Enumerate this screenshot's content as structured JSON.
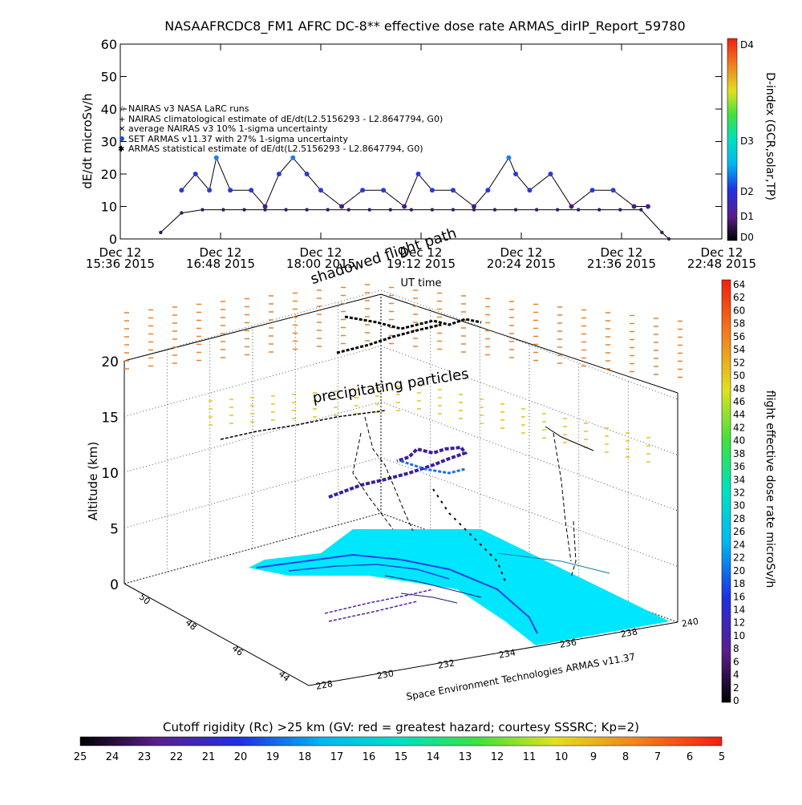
{
  "title": "NASAAFRCDC8_FM1 AFRC DC-8** effective dose rate ARMAS_dirIP_Report_59780",
  "chart_data": [
    {
      "type": "scatter",
      "title": "NASAAFRCDC8_FM1 AFRC DC-8** effective dose rate ARMAS_dirIP_Report_59780",
      "ylabel": "dE/dt microSv/h",
      "xlabel": "UT time",
      "ylim": [
        0,
        60
      ],
      "yticks": [
        "0",
        "10",
        "20",
        "30",
        "40",
        "50",
        "60"
      ],
      "xticks": [
        {
          "date": "Dec 12",
          "time": "15:36 2015"
        },
        {
          "date": "Dec 12",
          "time": "16:48 2015"
        },
        {
          "date": "Dec 12",
          "time": "18:00 2015"
        },
        {
          "date": "Dec 12",
          "time": "19:12 2015"
        },
        {
          "date": "Dec 12",
          "time": "20:24 2015"
        },
        {
          "date": "Dec 12",
          "time": "21:36 2015"
        },
        {
          "date": "Dec 12",
          "time": "22:48 2015"
        }
      ],
      "legend": [
        "NAIRAS v3 NASA LaRC runs",
        "NAIRAS climatological estimate of dE/dt(L2.5156293 - L2.8647794, G0)",
        "average NAIRAS v3 10% 1-sigma uncertainty",
        "SET ARMAS v11.37 with 27% 1-sigma uncertainty",
        "ARMAS statistical estimate of dE/dt(L2.5156293 - L2.8647794, G0)"
      ],
      "right_axis": {
        "label": "D-index (GCR,solar,TP)",
        "ticks": [
          "D4",
          "D3",
          "D2",
          "D1",
          "D0"
        ]
      },
      "series": [
        {
          "name": "NAIRAS climatological estimate of dE/dt(L2.5156293 - L2.8647794, G0)",
          "x": [
            "16:05",
            "16:20",
            "16:35",
            "16:50",
            "17:05",
            "17:20",
            "17:35",
            "17:50",
            "18:05",
            "18:20",
            "18:35",
            "18:50",
            "19:05",
            "19:20",
            "19:35",
            "19:50",
            "20:05",
            "20:20",
            "20:35",
            "20:50",
            "21:05",
            "21:20",
            "21:35",
            "21:50",
            "22:05",
            "22:10"
          ],
          "values": [
            2,
            8,
            9,
            9,
            9,
            9,
            9,
            9,
            9,
            9,
            9,
            9,
            9,
            9,
            9,
            9,
            9,
            9,
            9,
            9,
            9,
            9,
            9,
            9,
            2,
            0
          ]
        },
        {
          "name": "SET ARMAS v11.37 with 27% 1-sigma uncertainty",
          "x": [
            "16:20",
            "16:30",
            "16:40",
            "16:45",
            "16:55",
            "17:10",
            "17:20",
            "17:30",
            "17:40",
            "17:50",
            "18:00",
            "18:15",
            "18:30",
            "18:45",
            "19:00",
            "19:10",
            "19:20",
            "19:35",
            "19:50",
            "20:00",
            "20:15",
            "20:20",
            "20:30",
            "20:45",
            "21:00",
            "21:15",
            "21:30",
            "21:45",
            "21:55"
          ],
          "values": [
            15,
            20,
            15,
            25,
            15,
            15,
            10,
            20,
            25,
            20,
            15,
            10,
            15,
            15,
            10,
            20,
            15,
            15,
            10,
            15,
            25,
            20,
            15,
            20,
            10,
            15,
            15,
            10,
            10
          ]
        }
      ]
    },
    {
      "type": "scatter",
      "ylabel": "Altitude (km)",
      "zticks": [
        "0",
        "5",
        "10",
        "15",
        "20"
      ],
      "lat_ticks": [
        "50",
        "48",
        "46",
        "44"
      ],
      "lon_ticks": [
        "228",
        "230",
        "232",
        "234",
        "236",
        "238",
        "240"
      ],
      "lon_axis_label": "Space Environment Technologies ARMAS v11.37",
      "annotations": [
        "shadowed flight path",
        "precipitating particles"
      ],
      "colorbar": {
        "label": "flight effective dose rate microSv/h",
        "ticks": [
          "64",
          "62",
          "60",
          "58",
          "56",
          "54",
          "52",
          "50",
          "48",
          "46",
          "44",
          "42",
          "40",
          "38",
          "36",
          "34",
          "32",
          "30",
          "28",
          "26",
          "24",
          "22",
          "20",
          "18",
          "16",
          "14",
          "12",
          "10",
          "8",
          "6",
          "4",
          "2",
          "0"
        ]
      }
    },
    {
      "type": "heatmap",
      "title": "Cutoff rigidity (Rc) >25 km (GV: red = greatest hazard; courtesy SSSRC; Kp=2)",
      "colorbar_ticks": [
        "25",
        "24",
        "23",
        "22",
        "21",
        "20",
        "19",
        "18",
        "17",
        "16",
        "15",
        "14",
        "13",
        "12",
        "11",
        "10",
        "9",
        "8",
        "7",
        "6",
        "5"
      ]
    }
  ]
}
